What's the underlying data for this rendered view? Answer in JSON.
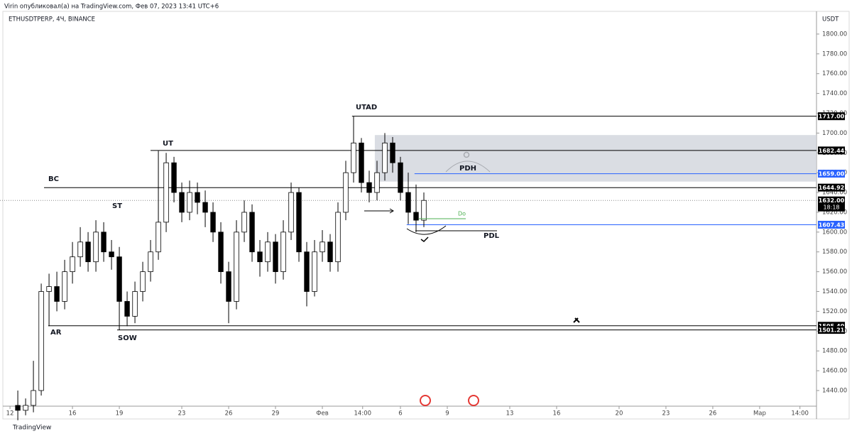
{
  "header": {
    "published": "Virin опубликовал(а) на TradingView.com, Фев 07, 2023 13:41 UTC+6",
    "brand": "TradingView"
  },
  "chart_data": {
    "type": "candlestick",
    "title": "ETHUSDTPERP, 4Ч, BINANCE",
    "y_axis_label": "USDT",
    "x": [
      12.5,
      13,
      13.5,
      14,
      14.5,
      15,
      15.5,
      16,
      16.5,
      17,
      17.5,
      18,
      18.5,
      19,
      19.5,
      20,
      20.5,
      21,
      21.5,
      22,
      22.5,
      23,
      23.5,
      24,
      24.5,
      25,
      25.5,
      26,
      26.5,
      27,
      27.5,
      28,
      28.5,
      29,
      29.5,
      30,
      30.5,
      31,
      31.5,
      32,
      32.5,
      33,
      33.5,
      34,
      34.5,
      35,
      35.5,
      36,
      36.5,
      37,
      37.5,
      38,
      38.5
    ],
    "open": [
      1425,
      1420,
      1425,
      1440,
      1540,
      1545,
      1530,
      1560,
      1575,
      1590,
      1570,
      1600,
      1580,
      1575,
      1530,
      1515,
      1540,
      1560,
      1580,
      1610,
      1670,
      1640,
      1620,
      1640,
      1630,
      1620,
      1600,
      1560,
      1530,
      1600,
      1620,
      1580,
      1570,
      1590,
      1560,
      1600,
      1640,
      1580,
      1540,
      1580,
      1590,
      1570,
      1620,
      1660,
      1690,
      1650,
      1640,
      1660,
      1690,
      1670,
      1640,
      1620,
      1612
    ],
    "high": [
      1440,
      1432,
      1470,
      1548,
      1558,
      1560,
      1572,
      1590,
      1605,
      1600,
      1612,
      1610,
      1592,
      1585,
      1540,
      1550,
      1570,
      1592,
      1682,
      1680,
      1676,
      1650,
      1652,
      1650,
      1642,
      1630,
      1610,
      1570,
      1612,
      1632,
      1628,
      1592,
      1600,
      1598,
      1612,
      1650,
      1645,
      1590,
      1592,
      1602,
      1598,
      1630,
      1672,
      1717,
      1695,
      1662,
      1672,
      1700,
      1696,
      1676,
      1660,
      1648,
      1640
    ],
    "low": [
      1410,
      1415,
      1418,
      1435,
      1505,
      1520,
      1522,
      1548,
      1565,
      1560,
      1560,
      1570,
      1562,
      1501,
      1505,
      1508,
      1530,
      1550,
      1572,
      1600,
      1630,
      1610,
      1612,
      1618,
      1605,
      1590,
      1548,
      1508,
      1522,
      1590,
      1570,
      1555,
      1560,
      1548,
      1552,
      1592,
      1570,
      1525,
      1535,
      1570,
      1560,
      1560,
      1612,
      1650,
      1640,
      1630,
      1632,
      1652,
      1660,
      1632,
      1608,
      1600,
      1605
    ],
    "close": [
      1420,
      1425,
      1440,
      1540,
      1545,
      1530,
      1560,
      1575,
      1590,
      1570,
      1600,
      1580,
      1575,
      1530,
      1515,
      1540,
      1560,
      1580,
      1610,
      1670,
      1640,
      1620,
      1640,
      1630,
      1620,
      1600,
      1560,
      1530,
      1600,
      1620,
      1580,
      1570,
      1590,
      1560,
      1600,
      1640,
      1580,
      1540,
      1580,
      1590,
      1570,
      1620,
      1660,
      1690,
      1650,
      1640,
      1660,
      1690,
      1670,
      1640,
      1620,
      1612,
      1632
    ],
    "up_color": "#ffffff",
    "down_color": "#000000",
    "xlim": [
      11.36,
      63.64
    ],
    "ylim": [
      1424.2,
      1822.9
    ],
    "xticks": [
      12,
      16,
      19,
      23,
      26,
      29,
      {
        "value": 32,
        "label": "Фев"
      },
      {
        "value": 34.58,
        "label": "14:00"
      },
      {
        "value": 37,
        "label": "6"
      },
      {
        "value": 40,
        "label": "9"
      },
      {
        "value": 44,
        "label": "13"
      },
      {
        "value": 47,
        "label": "16"
      },
      {
        "value": 51,
        "label": "20"
      },
      {
        "value": 54,
        "label": "23"
      },
      {
        "value": 57,
        "label": "26"
      },
      {
        "value": 60,
        "label": "Мар"
      },
      {
        "value": 62.58,
        "label": "14:00"
      }
    ],
    "yticks": [
      {
        "value": 1440,
        "label": "1440.00"
      },
      {
        "value": 1460,
        "label": "1460.00"
      },
      {
        "value": 1480,
        "label": "1480.00"
      },
      {
        "value": 1500,
        "label": "1500.00"
      },
      {
        "value": 1520,
        "label": "1520.00"
      },
      {
        "value": 1540,
        "label": "1540.00"
      },
      {
        "value": 1560,
        "label": "1560.00"
      },
      {
        "value": 1580,
        "label": "1580.00"
      },
      {
        "value": 1600,
        "label": "1600.00"
      },
      {
        "value": 1620,
        "label": "1620.00"
      },
      {
        "value": 1640,
        "label": "1640.00"
      },
      {
        "value": 1660,
        "label": "1660.00"
      },
      {
        "value": 1680,
        "label": "1680.00"
      },
      {
        "value": 1700,
        "label": "1700.00"
      },
      {
        "value": 1720,
        "label": "1720.00"
      },
      {
        "value": 1740,
        "label": "1740.00"
      },
      {
        "value": 1760,
        "label": "1760.00"
      },
      {
        "value": 1780,
        "label": "1780.00"
      },
      {
        "value": 1800,
        "label": "1800.00"
      }
    ],
    "levels": [
      {
        "value": 1717,
        "label": "1717.00",
        "from": 33.9,
        "color": "#000000"
      },
      {
        "value": 1682.44,
        "label": "1682.44",
        "from": 21.0,
        "color": "#000000"
      },
      {
        "value": 1659,
        "label": "1659.00",
        "from": 37.9,
        "color": "#2962ff"
      },
      {
        "value": 1644.92,
        "label": "1644.92",
        "from": 14.18,
        "color": "#000000"
      },
      {
        "value": 1607.43,
        "label": "1607.43",
        "from": 37.4,
        "color": "#2962ff"
      },
      {
        "value": 1505.4,
        "label": "1505.40",
        "from": 14.45,
        "color": "#000000"
      },
      {
        "value": 1501.21,
        "label": "1501.21",
        "from": 18.86,
        "color": "#000000"
      }
    ],
    "last_price": {
      "value": 1632,
      "label": "1632.00",
      "countdown": "18:18"
    },
    "zone": {
      "from": 35.36,
      "top": 1698,
      "bottom": 1651
    },
    "annotations": [
      "BC",
      "ST",
      "UT",
      "UTAD",
      "AR",
      "SOW",
      "PDH",
      "PDL",
      "Do"
    ]
  }
}
